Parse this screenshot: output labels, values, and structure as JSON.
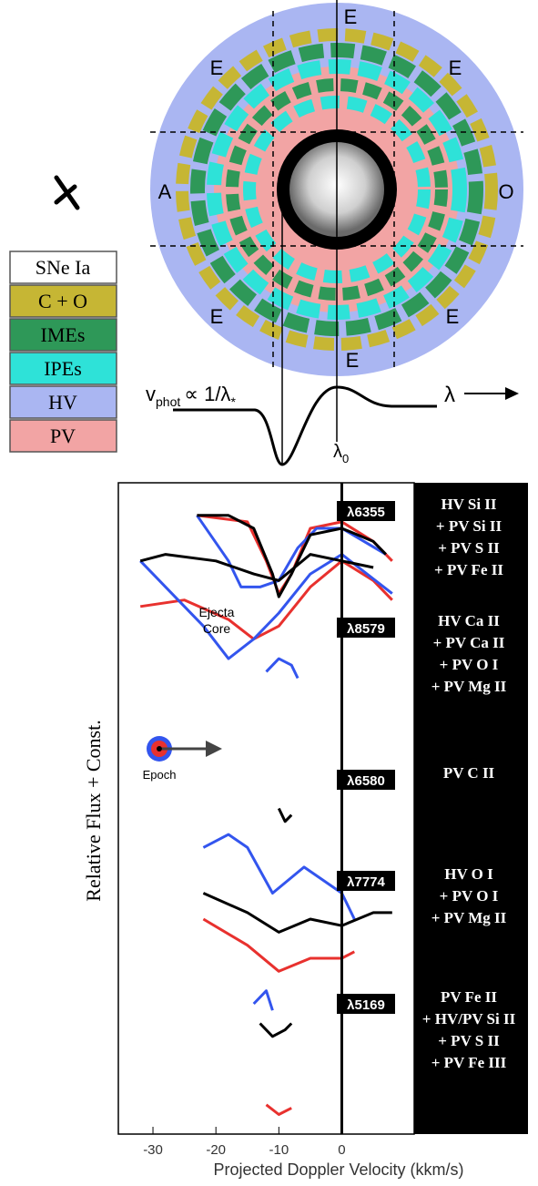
{
  "diagram": {
    "labels": [
      "E",
      "E",
      "E",
      "A",
      "O",
      "E",
      "E",
      "E"
    ],
    "formula": {
      "v": "v",
      "sub": "phot",
      "rel": "∝ 1/λ",
      "star": "*"
    },
    "lambda0": {
      "symbol": "λ",
      "sub": "0"
    },
    "lambda_arrow": "λ"
  },
  "legend": [
    {
      "label": "SNe Ia",
      "color": "#ffffff"
    },
    {
      "label": "C + O",
      "color": "#c6b634"
    },
    {
      "label": "IMEs",
      "color": "#2e9858"
    },
    {
      "label": "IPEs",
      "color": "#2ee2d8"
    },
    {
      "label": "HV",
      "color": "#aab6f2"
    },
    {
      "label": "PV",
      "color": "#f2a4a4"
    }
  ],
  "inset": {
    "ejecta": "Ejecta",
    "core": "Core",
    "epoch": "Epoch"
  },
  "chart_data": {
    "type": "line",
    "ylabel": "Relative Flux + Const.",
    "xlabel": "Projected Doppler Velocity (kkm/s)",
    "xlim": [
      -35.5,
      11.5
    ],
    "xticks": [
      -30,
      -20,
      -10,
      0
    ],
    "ylim": [
      0,
      100
    ],
    "annotations": [
      {
        "label": "λ6355",
        "lines": [
          "HV Si II",
          "+ PV Si II",
          "+ PV S II",
          "+ PV Fe II"
        ]
      },
      {
        "label": "λ8579",
        "lines": [
          "HV Ca II",
          "+ PV Ca II",
          "+ PV O I",
          "+ PV Mg II"
        ]
      },
      {
        "label": "λ6580",
        "lines": [
          "PV C II"
        ]
      },
      {
        "label": "λ7774",
        "lines": [
          "HV O I",
          "+ PV O I",
          "+ PV Mg II"
        ]
      },
      {
        "label": "λ5169",
        "lines": [
          "PV Fe II",
          "+ HV/PV Si II",
          "+ PV S II",
          "+ PV Fe III"
        ]
      }
    ],
    "series": [
      {
        "color": "#e8312e",
        "x": [
          -23,
          -15,
          -12,
          -10,
          -8,
          -5,
          0,
          5,
          8
        ],
        "values": [
          95,
          94,
          88,
          83,
          86,
          93,
          94,
          91,
          88
        ]
      },
      {
        "color": "#3355ee",
        "x": [
          -23,
          -18,
          -16,
          -13,
          -10,
          -7,
          -4,
          0,
          7
        ],
        "values": [
          95,
          88,
          84,
          84,
          85,
          90,
          93,
          93,
          89
        ]
      },
      {
        "color": "#000000",
        "x": [
          -23,
          -18,
          -14,
          -11,
          -10,
          -8,
          -5,
          0,
          5,
          7
        ],
        "values": [
          95,
          95,
          93,
          86,
          82.5,
          86,
          92,
          93,
          91,
          89
        ]
      },
      {
        "color": "#e8312e",
        "x": [
          -32,
          -25,
          -18,
          -14,
          -10,
          -5,
          0,
          5,
          8
        ],
        "values": [
          81,
          82,
          79,
          76,
          78,
          84,
          88,
          85,
          82
        ]
      },
      {
        "color": "#3355ee",
        "x": [
          -32,
          -28,
          -22,
          -18,
          -14,
          -10,
          -5,
          0,
          8
        ],
        "values": [
          88,
          84,
          78,
          73,
          76,
          80,
          86,
          89,
          83
        ]
      },
      {
        "color": "#000000",
        "x": [
          -32,
          -28,
          -20,
          -14,
          -10,
          -5,
          0,
          5
        ],
        "values": [
          88,
          89,
          88,
          86,
          85,
          89,
          88,
          87
        ]
      },
      {
        "color": "#3355ee",
        "x": [
          -12,
          -10,
          -8,
          -7
        ],
        "values": [
          71,
          73,
          72,
          70
        ]
      },
      {
        "color": "#000000",
        "x": [
          -10,
          -9,
          -8
        ],
        "values": [
          50,
          48,
          49
        ]
      },
      {
        "color": "#e8312e",
        "x": [
          -22,
          -15,
          -10,
          -5,
          0,
          2
        ],
        "values": [
          33,
          29,
          25,
          27,
          27,
          28
        ]
      },
      {
        "color": "#3355ee",
        "x": [
          -22,
          -18,
          -15,
          -11,
          -6,
          -3,
          0,
          2
        ],
        "values": [
          44,
          46,
          44,
          37,
          41,
          39,
          37,
          33
        ]
      },
      {
        "color": "#000000",
        "x": [
          -22,
          -15,
          -10,
          -5,
          0,
          5,
          8
        ],
        "values": [
          37,
          34,
          31,
          33,
          32,
          34,
          34
        ]
      },
      {
        "color": "#3355ee",
        "x": [
          -14,
          -12,
          -11
        ],
        "values": [
          20,
          22,
          19
        ]
      },
      {
        "color": "#000000",
        "x": [
          -13,
          -11,
          -9,
          -8
        ],
        "values": [
          17,
          15,
          16,
          17
        ]
      },
      {
        "color": "#e8312e",
        "x": [
          -12,
          -10,
          -8
        ],
        "values": [
          4.5,
          3,
          4
        ]
      }
    ]
  }
}
